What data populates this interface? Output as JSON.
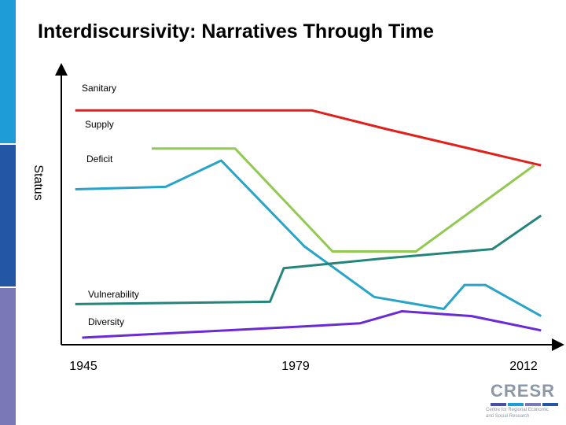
{
  "title": "Interdiscursivity: Narratives Through Time",
  "colors": {
    "bar_top": "#1e9cd7",
    "bar_mid": "#2456a6",
    "bar_bottom": "#7b78b8",
    "axis": "#000000"
  },
  "chart_data": {
    "type": "line",
    "title": "",
    "ylabel": "Status",
    "xlabel": "",
    "x_ticks": [
      "1945",
      "1979",
      "2012"
    ],
    "xlim": [
      1943,
      2014
    ],
    "ylim": [
      0,
      100
    ],
    "grid": false,
    "legend": "inline-labels",
    "series": [
      {
        "name": "Sanitary",
        "color": "#e0201b",
        "x": [
          1945,
          1979,
          1990,
          2012
        ],
        "y": [
          96,
          96,
          88,
          73
        ]
      },
      {
        "name": "Supply",
        "color": "#92c952",
        "x": [
          1956,
          1968,
          1982,
          1994,
          2011
        ],
        "y": [
          80,
          80,
          37,
          37,
          73
        ]
      },
      {
        "name": "Deficit",
        "color": "#27a4c8",
        "x": [
          1945,
          1958,
          1966,
          1978,
          1988,
          1998,
          2001,
          2004,
          2012
        ],
        "y": [
          63,
          64,
          75,
          39,
          18,
          13,
          23,
          23,
          10
        ]
      },
      {
        "name": "Vulnerability",
        "color": "#25857a",
        "x": [
          1945,
          1973,
          1975,
          1989,
          2005,
          2012
        ],
        "y": [
          15,
          16,
          30,
          34,
          38,
          52
        ]
      },
      {
        "name": "Diversity",
        "color": "#6a2ad6",
        "x": [
          1946,
          1980,
          1986,
          1992,
          2002,
          2012
        ],
        "y": [
          1,
          6,
          7,
          12,
          10,
          4
        ]
      }
    ]
  },
  "logo": {
    "text": "CRESR",
    "subtitle_lines": [
      "Centre for Regional Economic",
      "and Social Research"
    ],
    "bar_colors": [
      "#4a4fa6",
      "#1e9cd7",
      "#7b78b8",
      "#2456a6"
    ]
  }
}
